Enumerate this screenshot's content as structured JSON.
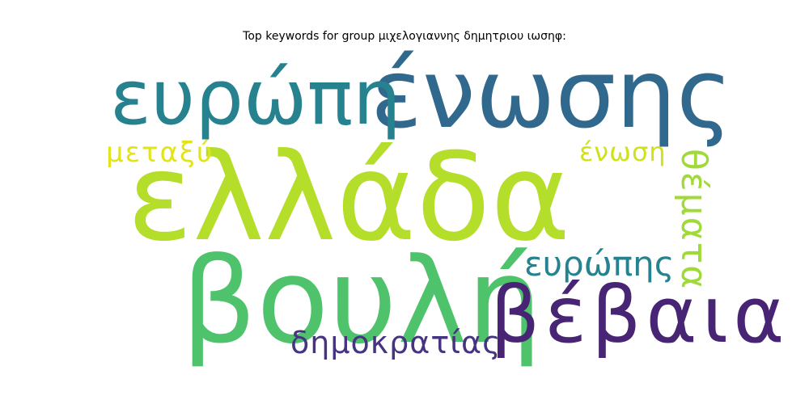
{
  "chart_data": {
    "type": "wordcloud",
    "title": "Top keywords for group μιχελογιαννης δημητριου ιωσηφ:",
    "words": [
      {
        "text": "ελλάδα",
        "weight": 1.0,
        "color": "#b5de2b",
        "rotated": false
      },
      {
        "text": "βουλή",
        "weight": 0.82,
        "color": "#4ec36b",
        "rotated": false
      },
      {
        "text": "ένωσης",
        "weight": 0.62,
        "color": "#31688e",
        "rotated": false
      },
      {
        "text": "ευρώπη",
        "weight": 0.55,
        "color": "#26828e",
        "rotated": false
      },
      {
        "text": "βέβαια",
        "weight": 0.42,
        "color": "#482475",
        "rotated": false
      },
      {
        "text": "ευρώπης",
        "weight": 0.22,
        "color": "#26828e",
        "rotated": false
      },
      {
        "text": "δημοκρατίας",
        "weight": 0.18,
        "color": "#463480",
        "rotated": false
      },
      {
        "text": "θέματα",
        "weight": 0.22,
        "color": "#a0da39",
        "rotated": true
      },
      {
        "text": "μεταξύ",
        "weight": 0.15,
        "color": "#e2e418",
        "rotated": false
      },
      {
        "text": "ένωση",
        "weight": 0.14,
        "color": "#d0e11c",
        "rotated": false
      }
    ]
  }
}
